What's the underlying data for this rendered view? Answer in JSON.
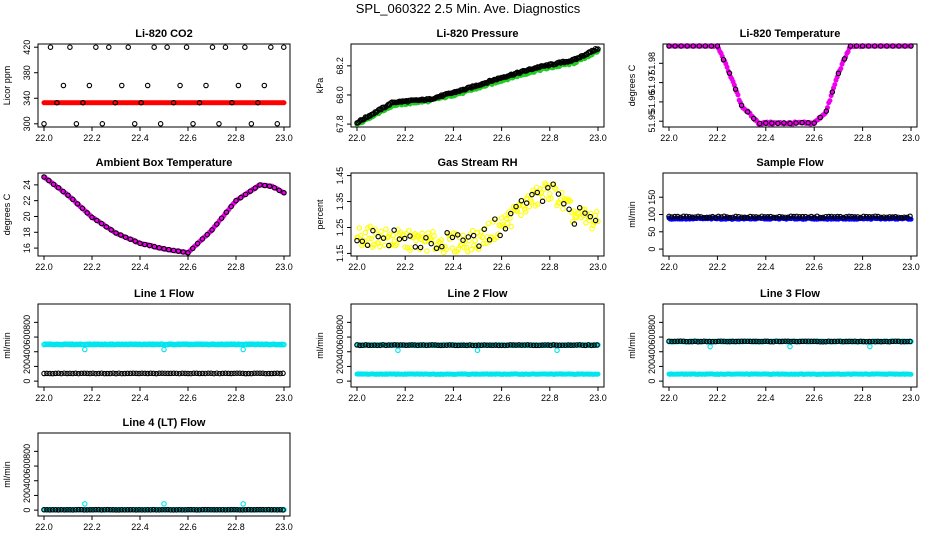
{
  "title": "SPL_060322  2.5 Min. Ave. Diagnostics",
  "chart_data": [
    {
      "type": "scatter",
      "title": "Li-820 CO2",
      "ylabel": "Licor ppm",
      "xlim": [
        22.0,
        23.0
      ],
      "ylim": [
        295,
        425
      ],
      "xticks": [
        "22.0",
        "22.2",
        "22.4",
        "22.6",
        "22.8",
        "23.0"
      ],
      "yticks": [
        {
          "v": 300,
          "label": "300"
        },
        {
          "v": 340,
          "label": "340"
        },
        {
          "v": 380,
          "label": "380"
        },
        {
          "v": 420,
          "label": "420"
        }
      ],
      "series": [
        {
          "name": "line",
          "color": "#ff0000",
          "filled": true,
          "style": "flat",
          "level": 333
        },
        {
          "name": "cycle",
          "color": "#000000",
          "filled": false,
          "style": "cycle",
          "values": [
            300,
            420,
            333,
            360,
            420,
            300,
            333,
            360,
            420
          ]
        }
      ]
    },
    {
      "type": "scatter",
      "title": "Li-820 Pressure",
      "ylabel": "kPa",
      "xlim": [
        22.0,
        23.0
      ],
      "ylim": [
        67.78,
        68.35
      ],
      "xticks": [
        "22.0",
        "22.2",
        "22.4",
        "22.6",
        "22.8",
        "23.0"
      ],
      "yticks": [
        {
          "v": 67.8,
          "label": "67.8"
        },
        {
          "v": 68.0,
          "label": "68.0"
        },
        {
          "v": 68.2,
          "label": "68.2"
        }
      ],
      "series": [
        {
          "name": "avg",
          "color": "#22cc22",
          "filled": true,
          "style": "curve",
          "x": [
            22.0,
            22.15,
            22.3,
            22.45,
            22.6,
            22.75,
            22.9,
            23.0
          ],
          "y": [
            67.8,
            67.93,
            67.96,
            68.02,
            68.1,
            68.17,
            68.22,
            68.3
          ],
          "noise": 0.008
        },
        {
          "name": "raw",
          "color": "#000000",
          "filled": false,
          "style": "curve",
          "x": [
            22.0,
            22.15,
            22.3,
            22.45,
            22.6,
            22.75,
            22.9,
            23.0
          ],
          "y": [
            67.81,
            67.95,
            67.97,
            68.04,
            68.12,
            68.19,
            68.24,
            68.32
          ],
          "noise": 0.006
        }
      ]
    },
    {
      "type": "scatter",
      "title": "Li-820 Temperature",
      "ylabel": "degrees C",
      "xlim": [
        22.0,
        23.0
      ],
      "ylim": [
        51.947,
        51.99
      ],
      "xticks": [
        "22.0",
        "22.2",
        "22.4",
        "22.6",
        "22.8",
        "23.0"
      ],
      "yticks": [
        {
          "v": 51.95,
          "label": "51.95"
        },
        {
          "v": 51.96,
          "label": "51.96"
        },
        {
          "v": 51.97,
          "label": "51.97"
        },
        {
          "v": 51.98,
          "label": "51.98"
        }
      ],
      "series": [
        {
          "name": "avg",
          "color": "#ee00ee",
          "filled": true,
          "style": "curve",
          "x": [
            22.0,
            22.2,
            22.25,
            22.3,
            22.37,
            22.6,
            22.65,
            22.7,
            22.75,
            23.0
          ],
          "y": [
            51.99,
            51.989,
            51.975,
            51.958,
            51.949,
            51.949,
            51.955,
            51.975,
            51.989,
            51.99
          ],
          "noise": 0.0006
        },
        {
          "name": "raw",
          "color": "#000000",
          "filled": false,
          "style": "curve",
          "x": [
            22.0,
            22.2,
            22.25,
            22.3,
            22.37,
            22.6,
            22.65,
            22.7,
            22.75,
            23.0
          ],
          "y": [
            51.99,
            51.989,
            51.975,
            51.958,
            51.949,
            51.949,
            51.955,
            51.975,
            51.989,
            51.99
          ],
          "noise": 0.0003,
          "step": 0.025
        }
      ]
    },
    {
      "type": "scatter",
      "title": "Ambient Box Temperature",
      "ylabel": "degrees C",
      "xlim": [
        22.0,
        23.0
      ],
      "ylim": [
        15.0,
        25.5
      ],
      "xticks": [
        "22.0",
        "22.2",
        "22.4",
        "22.6",
        "22.8",
        "23.0"
      ],
      "yticks": [
        {
          "v": 16,
          "label": "16"
        },
        {
          "v": 18,
          "label": "18"
        },
        {
          "v": 20,
          "label": "20"
        },
        {
          "v": 22,
          "label": "22"
        },
        {
          "v": 24,
          "label": "24"
        }
      ],
      "series": [
        {
          "name": "avg",
          "color": "#ee00ee",
          "filled": true,
          "style": "curve",
          "x": [
            22.0,
            22.1,
            22.2,
            22.3,
            22.4,
            22.5,
            22.6,
            22.7,
            22.8,
            22.9,
            22.95,
            23.0
          ],
          "y": [
            25.0,
            22.7,
            19.9,
            17.9,
            16.6,
            15.9,
            15.4,
            18.3,
            22.0,
            24.0,
            23.8,
            23.0
          ],
          "noise": 0.05
        },
        {
          "name": "raw",
          "color": "#000000",
          "filled": false,
          "style": "curve",
          "x": [
            22.0,
            22.1,
            22.2,
            22.3,
            22.4,
            22.5,
            22.6,
            22.7,
            22.8,
            22.9,
            22.95,
            23.0
          ],
          "y": [
            25.0,
            22.7,
            19.9,
            17.9,
            16.6,
            15.9,
            15.4,
            18.3,
            22.0,
            24.0,
            23.8,
            23.0
          ],
          "noise": 0.02,
          "step": 0.02
        }
      ]
    },
    {
      "type": "scatter",
      "title": "Gas Stream RH",
      "ylabel": "percent",
      "xlim": [
        22.0,
        23.0
      ],
      "ylim": [
        1.14,
        1.46
      ],
      "xticks": [
        "22.0",
        "22.2",
        "22.4",
        "22.6",
        "22.8",
        "23.0"
      ],
      "yticks": [
        {
          "v": 1.15,
          "label": "1.15"
        },
        {
          "v": 1.25,
          "label": "1.25"
        },
        {
          "v": 1.35,
          "label": "1.35"
        },
        {
          "v": 1.45,
          "label": "1.45"
        }
      ],
      "series": [
        {
          "name": "avg",
          "color": "#ffff00",
          "filled": false,
          "style": "curve",
          "x": [
            22.0,
            22.2,
            22.4,
            22.5,
            22.6,
            22.7,
            22.8,
            22.9,
            23.0
          ],
          "y": [
            1.22,
            1.2,
            1.19,
            1.2,
            1.26,
            1.34,
            1.4,
            1.3,
            1.27
          ],
          "noise": 0.04
        },
        {
          "name": "raw",
          "color": "#000000",
          "filled": false,
          "style": "curve",
          "x": [
            22.0,
            22.2,
            22.4,
            22.5,
            22.6,
            22.7,
            22.8,
            22.9,
            23.0
          ],
          "y": [
            1.22,
            1.2,
            1.19,
            1.2,
            1.26,
            1.34,
            1.4,
            1.3,
            1.27
          ],
          "noise": 0.04,
          "step": 0.022
        }
      ]
    },
    {
      "type": "scatter",
      "title": "Sample Flow",
      "ylabel": "ml/min",
      "xlim": [
        22.0,
        23.0
      ],
      "ylim": [
        -20,
        220
      ],
      "xticks": [
        "22.0",
        "22.2",
        "22.4",
        "22.6",
        "22.8",
        "23.0"
      ],
      "yticks": [
        {
          "v": 0,
          "label": "0"
        },
        {
          "v": 50,
          "label": "50"
        },
        {
          "v": 100,
          "label": "100"
        },
        {
          "v": 150,
          "label": "150"
        }
      ],
      "series": [
        {
          "name": "avg",
          "color": "#0000ff",
          "filled": true,
          "style": "flat",
          "level": 88,
          "noise": 2
        },
        {
          "name": "raw",
          "color": "#000000",
          "filled": false,
          "style": "flat",
          "level": 93,
          "noise": 2,
          "step": 0.012
        }
      ]
    },
    {
      "type": "scatter",
      "title": "Line 1 Flow",
      "ylabel": "ml/min",
      "xlim": [
        22.0,
        23.0
      ],
      "ylim": [
        -80,
        1050
      ],
      "xticks": [
        "22.0",
        "22.2",
        "22.4",
        "22.6",
        "22.8",
        "23.0"
      ],
      "yticks": [
        {
          "v": 0,
          "label": "0"
        },
        {
          "v": 200,
          "label": "200"
        },
        {
          "v": 400,
          "label": "400"
        },
        {
          "v": 600,
          "label": "600"
        },
        {
          "v": 800,
          "label": "800"
        }
      ],
      "series": [
        {
          "name": "ambient",
          "color": "#00e5ee",
          "filled": false,
          "style": "flat",
          "level": 500,
          "noise": 4,
          "dips": [
            22.17,
            22.5,
            22.83
          ],
          "dipValue": 430
        },
        {
          "name": "line",
          "color": "#000000",
          "filled": false,
          "style": "flat",
          "level": 105,
          "noise": 3,
          "step": 0.012
        }
      ]
    },
    {
      "type": "scatter",
      "title": "Line 2 Flow",
      "ylabel": "ml/min",
      "xlim": [
        22.0,
        23.0
      ],
      "ylim": [
        -80,
        1050
      ],
      "xticks": [
        "22.0",
        "22.2",
        "22.4",
        "22.6",
        "22.8",
        "23.0"
      ],
      "yticks": [
        {
          "v": 0,
          "label": "0"
        },
        {
          "v": 200,
          "label": "200"
        },
        {
          "v": 400,
          "label": "400"
        },
        {
          "v": 600,
          "label": "600"
        },
        {
          "v": 800,
          "label": "800"
        }
      ],
      "series": [
        {
          "name": "ambient",
          "color": "#00e5ee",
          "filled": false,
          "style": "flat",
          "level": 490,
          "noise": 4,
          "dips": [
            22.17,
            22.5,
            22.83
          ],
          "dipValue": 420
        },
        {
          "name": "low",
          "color": "#00e5ee",
          "filled": true,
          "style": "flat",
          "level": 95,
          "noise": 4
        },
        {
          "name": "line",
          "color": "#000000",
          "filled": false,
          "style": "flat",
          "level": 490,
          "noise": 4,
          "step": 0.012
        }
      ]
    },
    {
      "type": "scatter",
      "title": "Line 3 Flow",
      "ylabel": "ml/min",
      "xlim": [
        22.0,
        23.0
      ],
      "ylim": [
        -80,
        1050
      ],
      "xticks": [
        "22.0",
        "22.2",
        "22.4",
        "22.6",
        "22.8",
        "23.0"
      ],
      "yticks": [
        {
          "v": 0,
          "label": "0"
        },
        {
          "v": 200,
          "label": "200"
        },
        {
          "v": 400,
          "label": "400"
        },
        {
          "v": 600,
          "label": "600"
        },
        {
          "v": 800,
          "label": "800"
        }
      ],
      "series": [
        {
          "name": "ambient",
          "color": "#00e5ee",
          "filled": false,
          "style": "flat",
          "level": 540,
          "noise": 4,
          "dips": [
            22.17,
            22.5,
            22.83
          ],
          "dipValue": 470
        },
        {
          "name": "low",
          "color": "#00e5ee",
          "filled": true,
          "style": "flat",
          "level": 95,
          "noise": 4
        },
        {
          "name": "line",
          "color": "#000000",
          "filled": false,
          "style": "flat",
          "level": 540,
          "noise": 4,
          "step": 0.012
        }
      ]
    },
    {
      "type": "scatter",
      "title": "Line 4 (LT) Flow",
      "ylabel": "ml/min",
      "xlim": [
        22.0,
        23.0
      ],
      "ylim": [
        -80,
        1050
      ],
      "xticks": [
        "22.0",
        "22.2",
        "22.4",
        "22.6",
        "22.8",
        "23.0"
      ],
      "yticks": [
        {
          "v": 0,
          "label": "0"
        },
        {
          "v": 200,
          "label": "200"
        },
        {
          "v": 400,
          "label": "400"
        },
        {
          "v": 600,
          "label": "600"
        },
        {
          "v": 800,
          "label": "800"
        }
      ],
      "series": [
        {
          "name": "ambient",
          "color": "#00e5ee",
          "filled": false,
          "style": "flat",
          "level": 5,
          "noise": 1,
          "bumps": [
            22.17,
            22.5,
            22.83
          ],
          "bumpValue": 85
        },
        {
          "name": "line",
          "color": "#000000",
          "filled": false,
          "style": "flat",
          "level": 5,
          "noise": 2,
          "step": 0.012
        }
      ]
    }
  ]
}
